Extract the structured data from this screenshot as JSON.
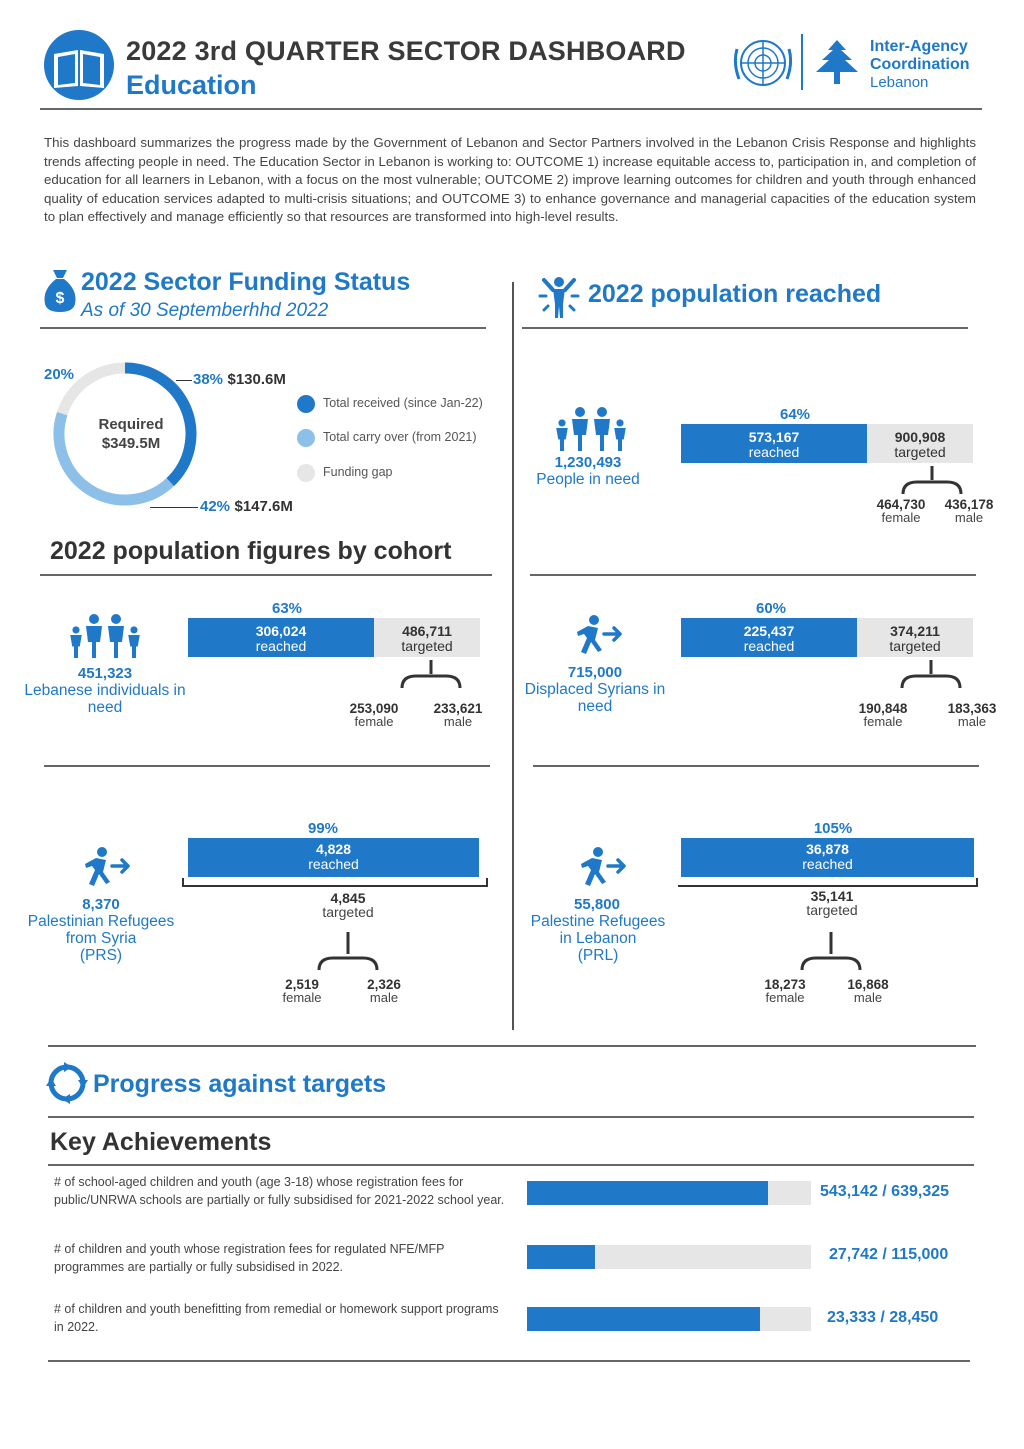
{
  "header": {
    "title": "2022 3rd QUARTER SECTOR DASHBOARD",
    "subtitle": "Education",
    "org_line1": "Inter-Agency",
    "org_line2": "Coordination",
    "org_line3": "Lebanon"
  },
  "intro": "This dashboard summarizes the progress made by the Government of Lebanon and Sector Partners involved in the Lebanon Crisis Response and highlights trends affecting people in need. The Education Sector in Lebanon is working to: OUTCOME 1) increase equitable access to, participation in, and completion of education for all learners in Lebanon, with a focus on the most vulnerable; OUTCOME 2) improve learning outcomes for children and youth through enhanced quality of education services adapted to multi-crisis situations; and OUTCOME 3) to enhance governance and managerial capacities of the education system to plan effectively and manage efficiently so that resources are transformed into high-level results.",
  "funding": {
    "title": "2022 Sector Funding Status",
    "date": "As of 30 Septemberhhd 2022",
    "required_label": "Required",
    "required_value": "$349.5M",
    "segments": [
      {
        "label": "Total received (since Jan-22)",
        "pct": "38%",
        "amount": "$130.6M",
        "fraction": 0.38,
        "color": "#1f78c8"
      },
      {
        "label": "Total carry over (from 2021)",
        "pct": "42%",
        "amount": "$147.6M",
        "fraction": 0.42,
        "color": "#8cc0e8"
      },
      {
        "label": "Funding gap",
        "pct": "20%",
        "amount": "",
        "fraction": 0.2,
        "color": "#e6e6e6"
      }
    ]
  },
  "reached": {
    "title": "2022 population reached",
    "people": {
      "in_need_num": "1,230,493",
      "in_need_label": "People in need",
      "pct": "64%",
      "reached_num": "573,167",
      "reached_label": "reached",
      "targeted_num": "900,908",
      "targeted_label": "targeted",
      "female_num": "464,730",
      "female_label": "female",
      "male_num": "436,178",
      "male_label": "male",
      "reached_fraction": 0.64
    }
  },
  "cohort": {
    "title": "2022 population figures by cohort",
    "lebanese": {
      "in_need_num": "451,323",
      "in_need_label": "Lebanese individuals in need",
      "pct": "63%",
      "reached_num": "306,024",
      "reached_label": "reached",
      "targeted_num": "486,711",
      "targeted_label": "targeted",
      "female_num": "253,090",
      "female_label": "female",
      "male_num": "233,621",
      "male_label": "male",
      "reached_fraction": 0.63
    },
    "syrians": {
      "in_need_num": "715,000",
      "in_need_label": "Displaced Syrians in need",
      "pct": "60%",
      "reached_num": "225,437",
      "reached_label": "reached",
      "targeted_num": "374,211",
      "targeted_label": "targeted",
      "female_num": "190,848",
      "female_label": "female",
      "male_num": "183,363",
      "male_label": "male",
      "reached_fraction": 0.6
    },
    "prs": {
      "in_need_num": "8,370",
      "in_need_label_1": "Palestinian Refugees",
      "in_need_label_2": "from Syria",
      "in_need_label_3": "(PRS)",
      "pct": "99%",
      "reached_num": "4,828",
      "reached_label": "reached",
      "targeted_num": "4,845",
      "targeted_label": "targeted",
      "female_num": "2,519",
      "female_label": "female",
      "male_num": "2,326",
      "male_label": "male"
    },
    "prl": {
      "in_need_num": "55,800",
      "in_need_label_1": "Palestine Refugees",
      "in_need_label_2": "in Lebanon",
      "in_need_label_3": "(PRL)",
      "pct": "105%",
      "reached_num": "36,878",
      "reached_label": "reached",
      "targeted_num": "35,141",
      "targeted_label": "targeted",
      "female_num": "18,273",
      "female_label": "female",
      "male_num": "16,868",
      "male_label": "male"
    }
  },
  "progress": {
    "title": "Progress against targets",
    "subtitle": "Key Achievements",
    "items": [
      {
        "text": "# of school-aged children and youth (age 3-18) whose registration fees for public/UNRWA schools are partially or fully subsidised for 2021-2022 school year.",
        "value": "543,142 / 639,325",
        "fraction": 0.85
      },
      {
        "text": "# of children and youth whose registration fees for regulated NFE/MFP programmes are partially or fully subsidised in 2022.",
        "value": "27,742 / 115,000",
        "fraction": 0.24
      },
      {
        "text": "# of children and youth benefitting from remedial or homework support programs in 2022.",
        "value": "23,333 / 28,450",
        "fraction": 0.82
      }
    ]
  },
  "icons": {
    "book": "book-icon",
    "un_emblem": "un-emblem-icon",
    "cedar": "cedar-tree-icon",
    "money_bag": "money-bag-icon",
    "person_star": "person-arms-up-icon",
    "family": "family-icon",
    "displaced": "displaced-person-icon",
    "progress": "circular-arrows-icon"
  }
}
